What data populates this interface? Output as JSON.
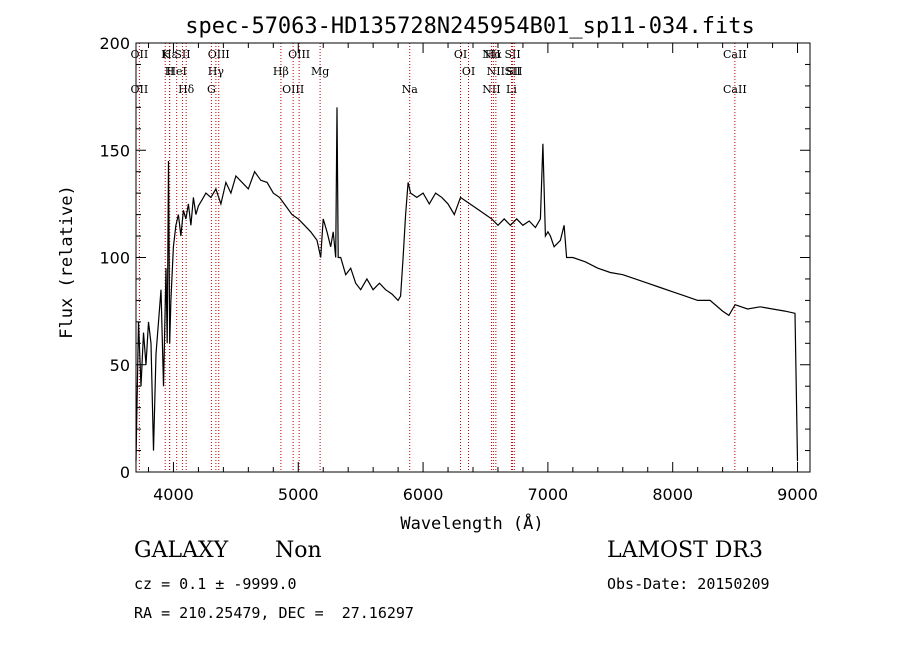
{
  "chart_data": {
    "type": "line",
    "title": "spec-57063-HD135728N245954B01_sp11-034.fits",
    "xlabel": "Wavelength (Å)",
    "ylabel": "Flux (relative)",
    "xlim": [
      3700,
      9100
    ],
    "ylim": [
      0,
      200
    ],
    "xticks": [
      4000,
      5000,
      6000,
      7000,
      8000,
      9000
    ],
    "yticks": [
      0,
      50,
      100,
      150,
      200
    ],
    "grid": false,
    "line_color": "#000000",
    "marker_color": "#c00000",
    "series": [
      {
        "x": [
          3700,
          3720,
          3740,
          3760,
          3780,
          3800,
          3820,
          3840,
          3860,
          3880,
          3900,
          3920,
          3940,
          3950,
          3960,
          3970,
          3980,
          4000,
          4020,
          4040,
          4060,
          4080,
          4100,
          4120,
          4140,
          4160,
          4180,
          4200,
          4230,
          4260,
          4300,
          4340,
          4380,
          4420,
          4460,
          4500,
          4550,
          4600,
          4650,
          4700,
          4750,
          4800,
          4850,
          4900,
          4950,
          5000,
          5050,
          5100,
          5150,
          5180,
          5200,
          5230,
          5260,
          5280,
          5300,
          5310,
          5320,
          5340,
          5380,
          5420,
          5460,
          5500,
          5550,
          5600,
          5650,
          5700,
          5750,
          5800,
          5820,
          5840,
          5860,
          5880,
          5900,
          5950,
          6000,
          6050,
          6100,
          6150,
          6200,
          6250,
          6300,
          6350,
          6400,
          6450,
          6500,
          6550,
          6600,
          6650,
          6700,
          6750,
          6800,
          6850,
          6900,
          6940,
          6960,
          6980,
          7000,
          7020,
          7050,
          7100,
          7130,
          7150,
          7200,
          7300,
          7400,
          7500,
          7600,
          7700,
          7800,
          7900,
          8000,
          8100,
          8200,
          8300,
          8400,
          8450,
          8500,
          8600,
          8700,
          8800,
          8900,
          8980,
          9000
        ],
        "y": [
          5,
          70,
          40,
          65,
          50,
          70,
          60,
          10,
          55,
          70,
          85,
          40,
          95,
          60,
          145,
          60,
          80,
          105,
          115,
          120,
          110,
          122,
          118,
          125,
          115,
          128,
          120,
          124,
          127,
          130,
          128,
          132,
          125,
          135,
          130,
          138,
          135,
          132,
          140,
          136,
          135,
          130,
          128,
          124,
          120,
          118,
          115,
          112,
          108,
          100,
          118,
          112,
          105,
          112,
          100,
          170,
          100,
          100,
          92,
          95,
          88,
          85,
          90,
          85,
          88,
          85,
          83,
          80,
          82,
          100,
          120,
          135,
          130,
          128,
          130,
          125,
          130,
          128,
          125,
          120,
          128,
          126,
          124,
          122,
          120,
          118,
          115,
          118,
          115,
          118,
          115,
          117,
          114,
          118,
          153,
          110,
          112,
          110,
          105,
          108,
          115,
          100,
          100,
          98,
          95,
          93,
          92,
          90,
          88,
          86,
          84,
          82,
          80,
          80,
          75,
          73,
          78,
          76,
          77,
          76,
          75,
          74,
          5
        ]
      }
    ],
    "lines": [
      {
        "x": 3934,
        "labels": [
          "K"
        ]
      },
      {
        "x": 3969,
        "labels": [
          "H"
        ]
      },
      {
        "x": 3727,
        "labels": [
          "OII",
          "OII"
        ]
      },
      {
        "x": 3970,
        "labels": [
          "Hε"
        ]
      },
      {
        "x": 4026,
        "labels": [
          "HeI"
        ]
      },
      {
        "x": 4102,
        "labels": [
          "Hδ"
        ]
      },
      {
        "x": 4072,
        "labels": [
          "SII"
        ]
      },
      {
        "x": 4340,
        "labels": [
          "Hγ"
        ]
      },
      {
        "x": 4304,
        "labels": [
          "G"
        ]
      },
      {
        "x": 4363,
        "labels": [
          "OIII"
        ]
      },
      {
        "x": 4861,
        "labels": [
          "Hβ"
        ]
      },
      {
        "x": 4959,
        "labels": [
          "OIII"
        ]
      },
      {
        "x": 5007,
        "labels": [
          "OIII"
        ]
      },
      {
        "x": 5175,
        "labels": [
          "Mg"
        ]
      },
      {
        "x": 5893,
        "labels": [
          "Na"
        ]
      },
      {
        "x": 6300,
        "labels": [
          "OI"
        ]
      },
      {
        "x": 6364,
        "labels": [
          "OI"
        ]
      },
      {
        "x": 6548,
        "labels": [
          "NII",
          "NII"
        ]
      },
      {
        "x": 6563,
        "labels": [
          "Hα"
        ]
      },
      {
        "x": 6583,
        "labels": [
          "NII"
        ]
      },
      {
        "x": 6708,
        "labels": [
          "Li"
        ]
      },
      {
        "x": 6717,
        "labels": [
          "SII",
          "SII"
        ]
      },
      {
        "x": 6731,
        "labels": [
          "SII"
        ]
      },
      {
        "x": 8498,
        "labels": [
          "CaII",
          "CaII"
        ]
      }
    ]
  },
  "info": {
    "class": "GALAXY",
    "subclass": "Non",
    "survey": "LAMOST DR3",
    "cz": "cz = 0.1 ± -9999.0",
    "obs_date": "Obs-Date: 20150209",
    "coords": "RA = 210.25479, DEC =  27.16297"
  }
}
